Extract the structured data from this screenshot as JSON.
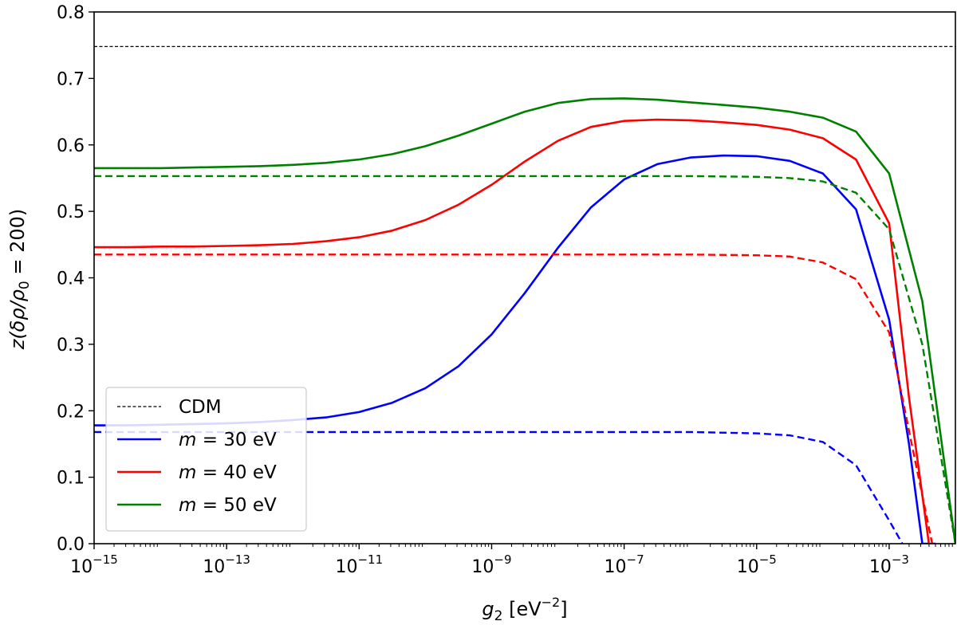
{
  "chart_data": {
    "type": "line",
    "title": "",
    "xlabel": "g_2 [eV^-2]",
    "ylabel": "z(δρ/ρ0 = 200)",
    "xscale": "log",
    "xlim": [
      1e-15,
      0.01
    ],
    "ylim": [
      0.0,
      0.8
    ],
    "grid": false,
    "legend_position": "lower-left",
    "x_ticks": [
      {
        "value": 1e-15,
        "base": "10",
        "exp": "−15"
      },
      {
        "value": 1e-13,
        "base": "10",
        "exp": "−13"
      },
      {
        "value": 1e-11,
        "base": "10",
        "exp": "−11"
      },
      {
        "value": 1e-09,
        "base": "10",
        "exp": "−9"
      },
      {
        "value": 1e-07,
        "base": "10",
        "exp": "−7"
      },
      {
        "value": 1e-05,
        "base": "10",
        "exp": "−5"
      },
      {
        "value": 0.001,
        "base": "10",
        "exp": "−3"
      }
    ],
    "y_ticks": [
      {
        "value": 0.0,
        "label": "0.0"
      },
      {
        "value": 0.1,
        "label": "0.1"
      },
      {
        "value": 0.2,
        "label": "0.2"
      },
      {
        "value": 0.3,
        "label": "0.3"
      },
      {
        "value": 0.4,
        "label": "0.4"
      },
      {
        "value": 0.5,
        "label": "0.5"
      },
      {
        "value": 0.6,
        "label": "0.6"
      },
      {
        "value": 0.7,
        "label": "0.7"
      },
      {
        "value": 0.8,
        "label": "0.8"
      }
    ],
    "xlabel_parts": {
      "sym": "g",
      "sub": "2",
      "unit": " [eV",
      "sup": "−2",
      "close": "]"
    },
    "ylabel_parts": {
      "pre": "z(δρ/ρ",
      "sub": "0",
      "post": " = 200)"
    },
    "series": [
      {
        "name": "CDM",
        "legend": "CDM",
        "color": "#000000",
        "style": "dashed-thin",
        "x_exp": [
          -15,
          -2
        ],
        "y": [
          0.748,
          0.748
        ]
      },
      {
        "name": "m=30 eV",
        "legend_sym": "m",
        "legend_val": " = 30 eV",
        "color": "#0000ff",
        "style": "solid",
        "x_exp": [
          -15,
          -14.5,
          -14,
          -13.5,
          -13,
          -12.5,
          -12,
          -11.5,
          -11,
          -10.5,
          -10,
          -9.5,
          -9,
          -8.5,
          -8,
          -7.5,
          -7,
          -6.5,
          -6,
          -5.5,
          -5,
          -4.5,
          -4,
          -3.5,
          -3,
          -2.7,
          -2.5,
          -2.3
        ],
        "y": [
          0.178,
          0.178,
          0.179,
          0.18,
          0.181,
          0.183,
          0.186,
          0.19,
          0.198,
          0.212,
          0.234,
          0.267,
          0.315,
          0.377,
          0.445,
          0.506,
          0.548,
          0.571,
          0.581,
          0.584,
          0.583,
          0.576,
          0.557,
          0.503,
          0.337,
          0.15,
          0.0,
          0.0
        ]
      },
      {
        "name": "m=30 eV (dashed)",
        "color": "#0000ff",
        "style": "dashed",
        "x_exp": [
          -15,
          -13,
          -11,
          -9,
          -7,
          -6,
          -5,
          -4.5,
          -4,
          -3.5,
          -3,
          -2.8
        ],
        "y": [
          0.168,
          0.168,
          0.168,
          0.168,
          0.168,
          0.168,
          0.166,
          0.163,
          0.153,
          0.118,
          0.035,
          0.0
        ]
      },
      {
        "name": "m=40 eV",
        "legend_sym": "m",
        "legend_val": " = 40 eV",
        "color": "#ff0000",
        "style": "solid",
        "x_exp": [
          -15,
          -14.5,
          -14,
          -13.5,
          -13,
          -12.5,
          -12,
          -11.5,
          -11,
          -10.5,
          -10,
          -9.5,
          -9,
          -8.5,
          -8,
          -7.5,
          -7,
          -6.5,
          -6,
          -5.5,
          -5,
          -4.5,
          -4,
          -3.5,
          -3,
          -2.7,
          -2.4
        ],
        "y": [
          0.446,
          0.446,
          0.447,
          0.447,
          0.448,
          0.449,
          0.451,
          0.455,
          0.461,
          0.471,
          0.487,
          0.51,
          0.54,
          0.575,
          0.606,
          0.627,
          0.636,
          0.638,
          0.637,
          0.634,
          0.63,
          0.623,
          0.61,
          0.578,
          0.482,
          0.22,
          0.0
        ]
      },
      {
        "name": "m=40 eV (dashed)",
        "color": "#ff0000",
        "style": "dashed",
        "x_exp": [
          -15,
          -13,
          -11,
          -9,
          -7,
          -6,
          -5,
          -4.5,
          -4,
          -3.5,
          -3,
          -2.7,
          -2.35
        ],
        "y": [
          0.435,
          0.435,
          0.435,
          0.435,
          0.435,
          0.435,
          0.434,
          0.432,
          0.423,
          0.398,
          0.318,
          0.17,
          0.0
        ]
      },
      {
        "name": "m=50 eV",
        "legend_sym": "m",
        "legend_val": " = 50 eV",
        "color": "#008000",
        "style": "solid",
        "x_exp": [
          -15,
          -14.5,
          -14,
          -13.5,
          -13,
          -12.5,
          -12,
          -11.5,
          -11,
          -10.5,
          -10,
          -9.5,
          -9,
          -8.5,
          -8,
          -7.5,
          -7,
          -6.5,
          -6,
          -5.5,
          -5,
          -4.5,
          -4,
          -3.5,
          -3,
          -2.5,
          -2
        ],
        "y": [
          0.565,
          0.565,
          0.565,
          0.566,
          0.567,
          0.568,
          0.57,
          0.573,
          0.578,
          0.586,
          0.598,
          0.614,
          0.632,
          0.65,
          0.663,
          0.669,
          0.67,
          0.668,
          0.664,
          0.66,
          0.656,
          0.65,
          0.641,
          0.62,
          0.557,
          0.365,
          0.0
        ]
      },
      {
        "name": "m=50 eV (dashed)",
        "color": "#008000",
        "style": "dashed",
        "x_exp": [
          -15,
          -13,
          -11,
          -9,
          -7,
          -6,
          -5,
          -4.5,
          -4,
          -3.5,
          -3,
          -2.5,
          -2
        ],
        "y": [
          0.553,
          0.553,
          0.553,
          0.553,
          0.553,
          0.553,
          0.552,
          0.55,
          0.545,
          0.528,
          0.473,
          0.3,
          0.0
        ]
      }
    ]
  }
}
